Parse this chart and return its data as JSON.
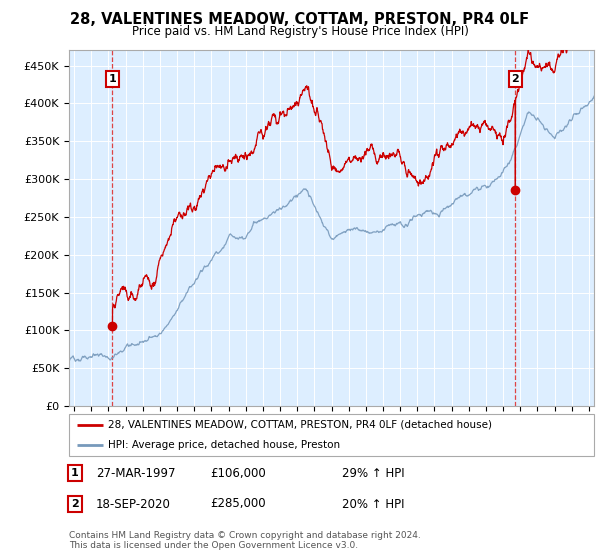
{
  "title": "28, VALENTINES MEADOW, COTTAM, PRESTON, PR4 0LF",
  "subtitle": "Price paid vs. HM Land Registry's House Price Index (HPI)",
  "legend_line1": "28, VALENTINES MEADOW, COTTAM, PRESTON, PR4 0LF (detached house)",
  "legend_line2": "HPI: Average price, detached house, Preston",
  "sale1_date": "27-MAR-1997",
  "sale1_price": "£106,000",
  "sale1_hpi": "29% ↑ HPI",
  "sale1_year": 1997.23,
  "sale1_value": 106000,
  "sale2_date": "18-SEP-2020",
  "sale2_price": "£285,000",
  "sale2_hpi": "20% ↑ HPI",
  "sale2_year": 2020.72,
  "sale2_value": 285000,
  "footer": "Contains HM Land Registry data © Crown copyright and database right 2024.\nThis data is licensed under the Open Government Licence v3.0.",
  "red_color": "#cc0000",
  "blue_color": "#7799bb",
  "dashed_color": "#dd4444",
  "bg_plot_color": "#ddeeff",
  "background_color": "#ffffff",
  "grid_color": "#ffffff",
  "ylim_min": 0,
  "ylim_max": 470000,
  "xlim_min": 1994.7,
  "xlim_max": 2025.3,
  "yticks": [
    0,
    50000,
    100000,
    150000,
    200000,
    250000,
    300000,
    350000,
    400000,
    450000
  ],
  "ytick_labels": [
    "£0",
    "£50K",
    "£100K",
    "£150K",
    "£200K",
    "£250K",
    "£300K",
    "£350K",
    "£400K",
    "£450K"
  ],
  "xticks": [
    1995,
    1996,
    1997,
    1998,
    1999,
    2000,
    2001,
    2002,
    2003,
    2004,
    2005,
    2006,
    2007,
    2008,
    2009,
    2010,
    2011,
    2012,
    2013,
    2014,
    2015,
    2016,
    2017,
    2018,
    2019,
    2020,
    2021,
    2022,
    2023,
    2024,
    2025
  ]
}
